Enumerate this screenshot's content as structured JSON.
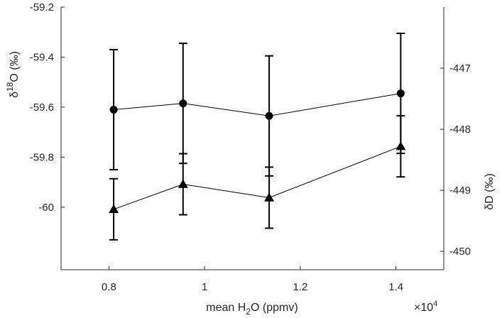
{
  "chart_data": {
    "type": "scatter",
    "xlabel": {
      "prefix": "mean H",
      "sub": "2",
      "suffix": "O (ppmv)"
    },
    "x_exponent": {
      "base": "×10",
      "power": "4"
    },
    "ylabel_left": {
      "prefix": "δ",
      "sup": "18",
      "suffix": "O (‰)"
    },
    "ylabel_right": "δD (‰)",
    "xlim": [
      0.7,
      1.5
    ],
    "ylim_left": [
      -60.25,
      -59.2
    ],
    "ylim_right": [
      -450.3,
      -446.0
    ],
    "x_ticks": [
      0.8,
      1.0,
      1.2,
      1.4
    ],
    "x_tick_labels": [
      "0.8",
      "1",
      "1.2",
      "1.4"
    ],
    "y_left_ticks": [
      -59.2,
      -59.4,
      -59.6,
      -59.8,
      -60.0
    ],
    "y_left_tick_labels": [
      "-59.2",
      "-59.4",
      "-59.6",
      "-59.8",
      "-60"
    ],
    "y_right_ticks": [
      -447,
      -448,
      -449,
      -450
    ],
    "y_right_tick_labels": [
      "-447",
      "-448",
      "-449",
      "-450"
    ],
    "grid": false,
    "series": [
      {
        "axis": "left",
        "marker": "circle",
        "x": [
          0.81,
          0.955,
          1.135,
          1.41
        ],
        "y": [
          -59.61,
          -59.585,
          -59.635,
          -59.545
        ],
        "err": [
          0.24,
          0.24,
          0.24,
          0.24
        ]
      },
      {
        "axis": "right",
        "marker": "triangle",
        "x": [
          0.81,
          0.955,
          1.135,
          1.41
        ],
        "y": [
          -449.31,
          -448.9,
          -449.12,
          -448.28
        ],
        "err": [
          0.5,
          0.5,
          0.5,
          0.5
        ]
      }
    ]
  }
}
